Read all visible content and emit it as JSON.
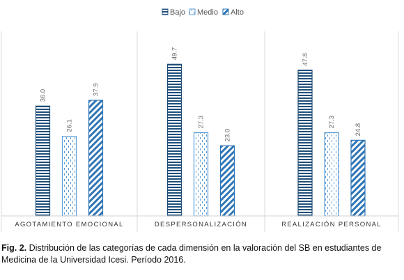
{
  "chart_data": {
    "type": "bar",
    "categories": [
      "AGOTAMIENTO EMOCIONAL",
      "DESPERSONALIZACIÓN",
      "REALIZACIÓN PERSONAL"
    ],
    "series": [
      {
        "name": "Bajo",
        "values": [
          36.0,
          49.7,
          47.8
        ],
        "labels": [
          "36.0",
          "49.7",
          "47.8"
        ],
        "color": "#1f4e79",
        "pattern": "horizontal-stripes"
      },
      {
        "name": "Medio",
        "values": [
          26.1,
          27.3,
          27.3
        ],
        "labels": [
          "26.1",
          "27.3",
          "27.3"
        ],
        "color": "#5b9bd5",
        "pattern": "dotted-vertical-dashes"
      },
      {
        "name": "Alto",
        "values": [
          37.9,
          23.0,
          24.8
        ],
        "labels": [
          "37.9",
          "23.0",
          "24.8"
        ],
        "color": "#2e75b6",
        "pattern": "diagonal-stripes"
      }
    ],
    "ylim": [
      0,
      52.5
    ],
    "grid": false,
    "legend_position": "top-center",
    "data_labels": true
  },
  "caption": {
    "prefix": "Fig. 2.",
    "text": " Distribución de las categorías de cada dimensión en la valoración del SB en estudiantes de Medicina de la Universidad Icesi. Período 2016."
  }
}
